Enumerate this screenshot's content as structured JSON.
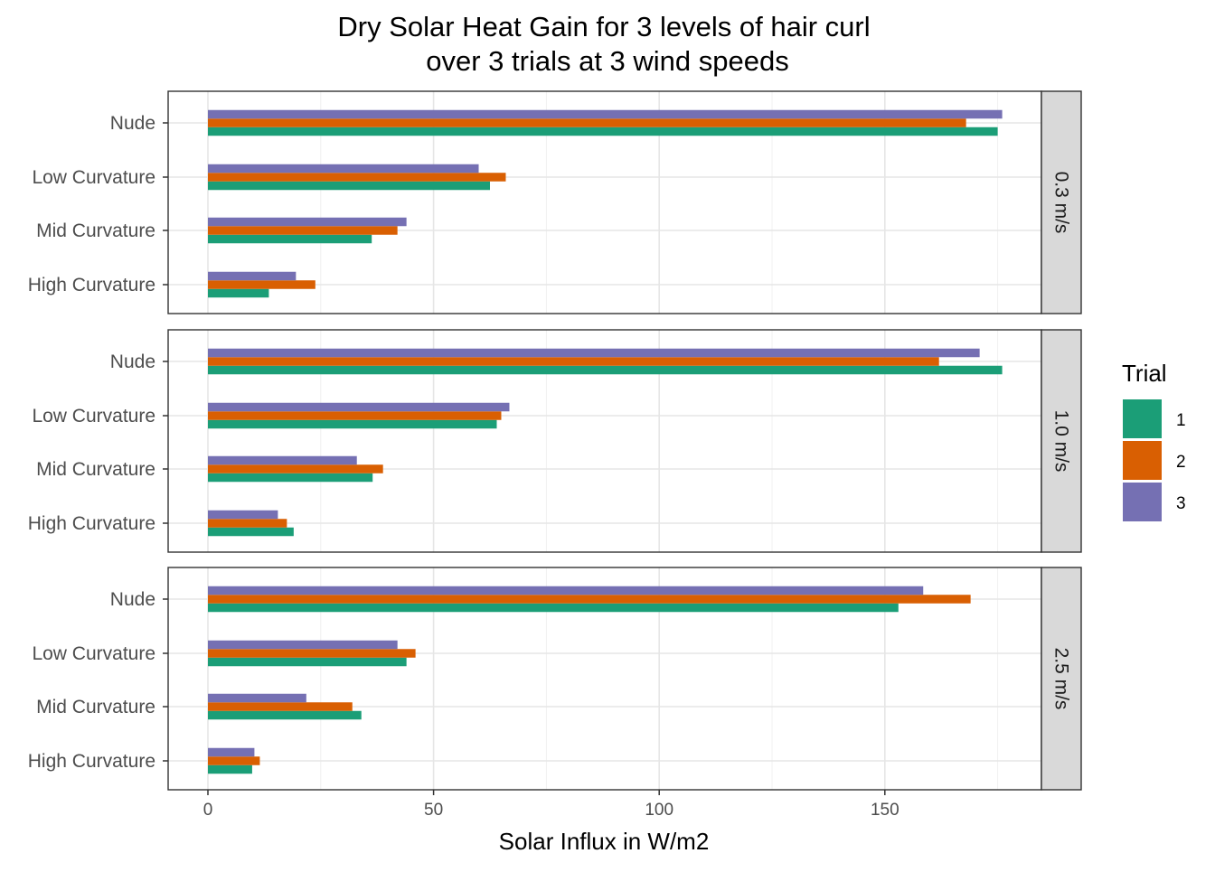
{
  "chart_data": {
    "type": "bar",
    "orientation": "horizontal",
    "title": "Dry Solar Heat Gain for 3 levels of hair curl",
    "subtitle": "over 3 trials at 3 wind speeds",
    "xlabel": "Solar Influx in W/m2",
    "ylabel": "",
    "xlim": [
      -9,
      194
    ],
    "xticks": [
      0,
      50,
      100,
      150
    ],
    "grid": true,
    "categories": [
      "Nude",
      "Low Curvature",
      "Mid Curvature",
      "High Curvature"
    ],
    "legend": {
      "title": "Trial",
      "position": "right",
      "entries": [
        {
          "label": "1",
          "color": "#1b9e77"
        },
        {
          "label": "2",
          "color": "#d95f02"
        },
        {
          "label": "3",
          "color": "#7570b3"
        }
      ]
    },
    "panels": [
      {
        "label": "0.3 m/s",
        "series": [
          {
            "name": "1",
            "values": [
              175,
              62.5,
              36.3,
              13.5
            ]
          },
          {
            "name": "2",
            "values": [
              168,
              66,
              42,
              23.8
            ]
          },
          {
            "name": "3",
            "values": [
              176,
              60,
              44,
              19.5
            ]
          }
        ]
      },
      {
        "label": "1.0 m/s",
        "series": [
          {
            "name": "1",
            "values": [
              176,
              64,
              36.5,
              19
            ]
          },
          {
            "name": "2",
            "values": [
              162,
              65,
              38.8,
              17.5
            ]
          },
          {
            "name": "3",
            "values": [
              171,
              66.8,
              33,
              15.5
            ]
          }
        ]
      },
      {
        "label": "2.5 m/s",
        "series": [
          {
            "name": "1",
            "values": [
              153,
              44,
              34,
              9.8
            ]
          },
          {
            "name": "2",
            "values": [
              169,
              46,
              32,
              11.5
            ]
          },
          {
            "name": "3",
            "values": [
              158.5,
              42,
              21.8,
              10.3
            ]
          }
        ]
      }
    ]
  }
}
